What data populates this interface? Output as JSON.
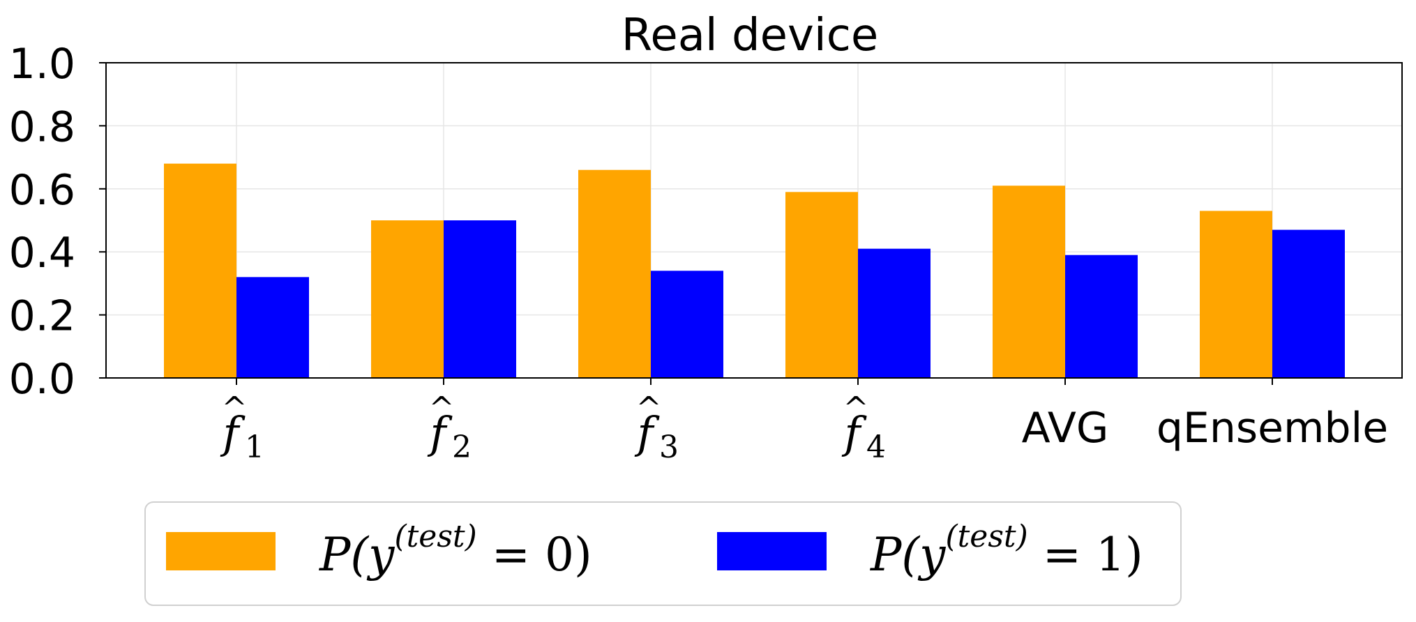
{
  "chart_data": {
    "type": "bar",
    "title": "Real device",
    "categories": [
      {
        "base": "f",
        "hat": "^",
        "sub": "1"
      },
      {
        "base": "f",
        "hat": "^",
        "sub": "2"
      },
      {
        "base": "f",
        "hat": "^",
        "sub": "3"
      },
      {
        "base": "f",
        "hat": "^",
        "sub": "4"
      },
      {
        "text": "AVG"
      },
      {
        "text": "qEnsemble"
      }
    ],
    "series": [
      {
        "name_parts": {
          "pre": "P(y",
          "sup": "(test)",
          "post": " = 0)"
        },
        "color": "#FFA500",
        "values": [
          0.68,
          0.5,
          0.66,
          0.59,
          0.61,
          0.53
        ]
      },
      {
        "name_parts": {
          "pre": "P(y",
          "sup": "(test)",
          "post": " = 1)"
        },
        "color": "#0000FF",
        "values": [
          0.32,
          0.5,
          0.34,
          0.41,
          0.39,
          0.47
        ]
      }
    ],
    "ylim": [
      0.0,
      1.0
    ],
    "yticks": [
      "0.0",
      "0.2",
      "0.4",
      "0.6",
      "0.8",
      "1.0"
    ],
    "grid": true,
    "legend_position": "bottom-center"
  }
}
